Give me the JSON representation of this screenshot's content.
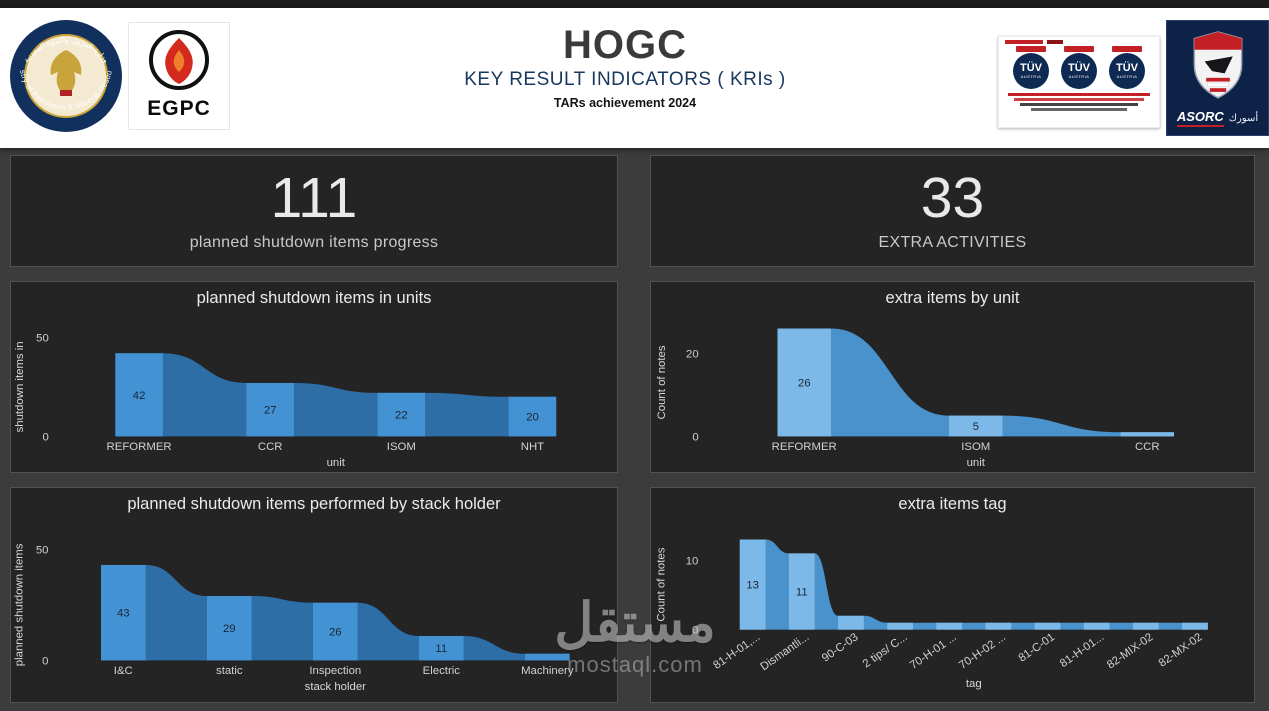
{
  "header": {
    "title": "HOGC",
    "subtitle": "KEY RESULT INDICATORS ( KRIs )",
    "tagline": "TARs  achievement  2024",
    "ministry_logo": {
      "arabic": "وزارة البترول والثروة المعدنية",
      "english": "Ministry of Petroleum & Mineral Resources"
    },
    "egpc_label": "EGPC",
    "tuv": {
      "label": "TÜV",
      "sub": "AUSTRIA"
    },
    "asorc": {
      "label": "ASORC",
      "arabic": "أسورك"
    }
  },
  "kpis": [
    {
      "value": "111",
      "label": "planned shutdown items progress"
    },
    {
      "value": "33",
      "label": "EXTRA ACTIVITIES"
    }
  ],
  "watermark": {
    "arabic": "مستقل",
    "latin": "mostaql.com"
  },
  "chart_data": [
    {
      "type": "bar",
      "style": "funnel-area",
      "title": "planned shutdown items in units",
      "categories": [
        "REFORMER",
        "CCR",
        "ISOM",
        "NHT"
      ],
      "values": [
        42,
        27,
        22,
        20
      ],
      "xlabel": "unit",
      "ylabel": "shutdown items in",
      "yticks": [
        0,
        50
      ],
      "ylim": [
        0,
        50
      ],
      "grid": false,
      "colors": {
        "bar": "#4392d4",
        "area": "#2e6ea6"
      }
    },
    {
      "type": "bar",
      "style": "funnel-area",
      "title": "extra items by unit",
      "categories": [
        "REFORMER",
        "ISOM",
        "CCR"
      ],
      "values": [
        26,
        5,
        1
      ],
      "xlabel": "unit",
      "ylabel": "Count of notes",
      "yticks": [
        0,
        20
      ],
      "ylim": [
        0,
        26
      ],
      "grid": false,
      "colors": {
        "bar": "#7db9e8",
        "area": "#4a92cc"
      }
    },
    {
      "type": "bar",
      "style": "funnel-area",
      "title": "planned shutdown items performed by stack holder",
      "categories": [
        "I&C",
        "static",
        "Inspection",
        "Electric",
        "Machinery"
      ],
      "values": [
        43,
        29,
        26,
        11,
        3
      ],
      "xlabel": "stack holder",
      "ylabel": "planned shutdown items",
      "yticks": [
        0,
        50
      ],
      "ylim": [
        0,
        50
      ],
      "grid": false,
      "colors": {
        "bar": "#4392d4",
        "area": "#2e6ea6"
      }
    },
    {
      "type": "bar",
      "style": "funnel-area",
      "title": "extra items tag",
      "categories": [
        "81-H-01,...",
        "Dismantli...",
        "90-C-03",
        "2 tips/ C...",
        "70-H-01 ...",
        "70-H-02 ...",
        "81-C-01",
        "81-H-01...",
        "82-MIX-02",
        "82-MX-02"
      ],
      "values": [
        13,
        11,
        2,
        1,
        1,
        1,
        1,
        1,
        1,
        1
      ],
      "xlabel": "tag",
      "ylabel": "Count of notes",
      "yticks": [
        0,
        10
      ],
      "ylim": [
        0,
        13
      ],
      "grid": false,
      "colors": {
        "bar": "#7db9e8",
        "area": "#4a92cc"
      }
    }
  ]
}
